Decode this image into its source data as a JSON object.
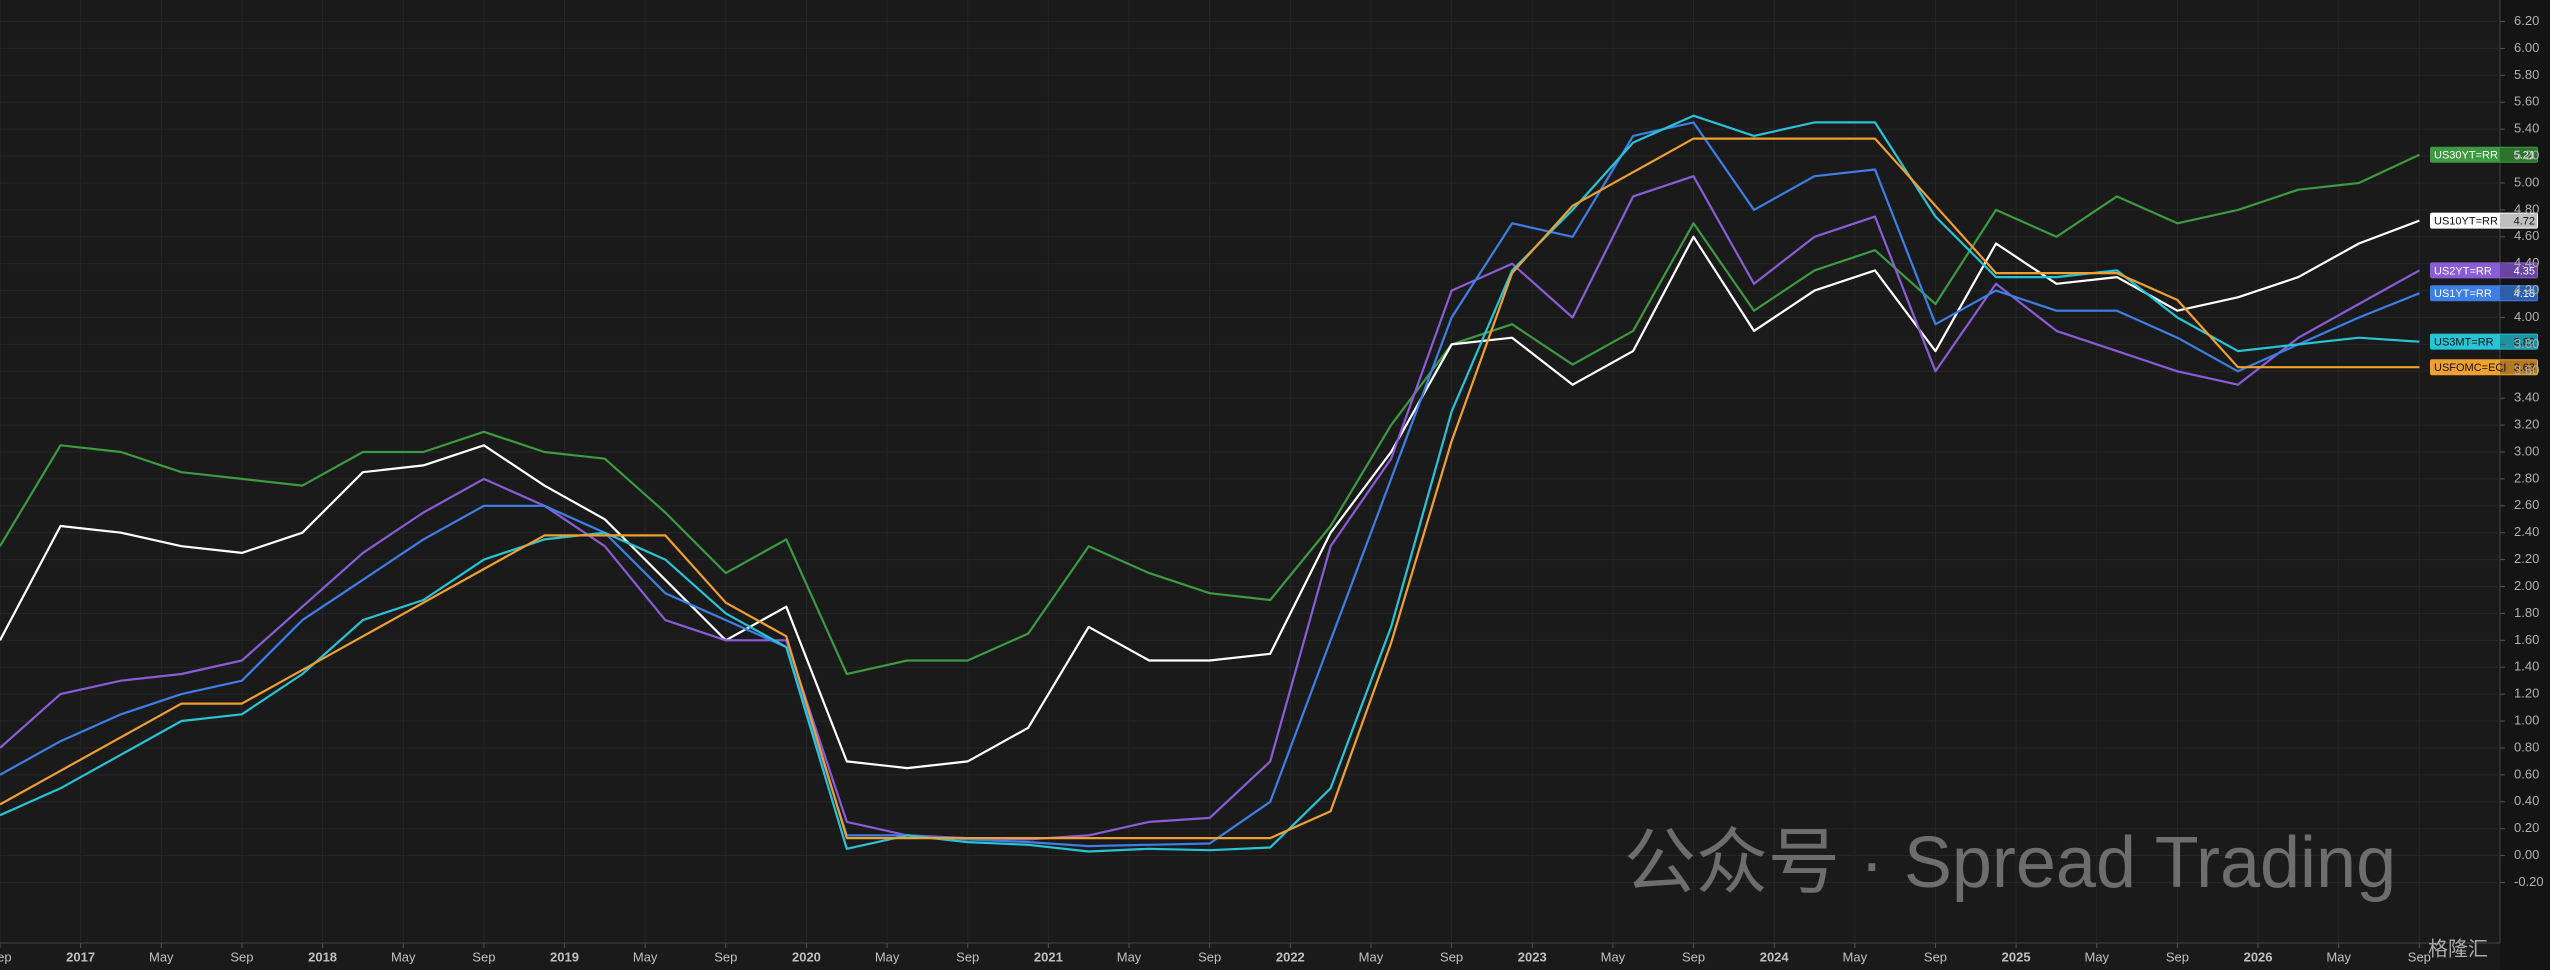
{
  "chart_data": {
    "type": "line",
    "x": [
      "2016-09",
      "2016-12",
      "2017-03",
      "2017-06",
      "2017-09",
      "2017-12",
      "2018-03",
      "2018-06",
      "2018-09",
      "2018-12",
      "2019-03",
      "2019-06",
      "2019-09",
      "2019-12",
      "2020-03",
      "2020-06",
      "2020-09",
      "2020-12",
      "2021-03",
      "2021-06",
      "2021-09",
      "2021-12",
      "2022-03",
      "2022-06",
      "2022-09",
      "2022-12",
      "2023-03",
      "2023-06",
      "2023-09",
      "2023-12",
      "2024-03",
      "2024-06",
      "2024-09",
      "2024-12",
      "2025-03",
      "2025-06",
      "2025-09",
      "2025-12",
      "2026-03",
      "2026-06",
      "2026-09"
    ],
    "series": [
      {
        "name": "US30YT=RR",
        "color": "#3c9a40",
        "values": [
          2.3,
          3.05,
          3.0,
          2.85,
          2.8,
          2.75,
          3.0,
          3.0,
          3.15,
          3.0,
          2.95,
          2.55,
          2.1,
          2.35,
          1.35,
          1.45,
          1.45,
          1.65,
          2.3,
          2.1,
          1.95,
          1.9,
          2.45,
          3.2,
          3.8,
          3.95,
          3.65,
          3.9,
          4.7,
          4.05,
          4.35,
          4.5,
          4.1,
          4.8,
          4.6,
          4.9,
          4.7,
          4.8,
          4.95,
          5.0,
          5.21
        ]
      },
      {
        "name": "US10YT=RR",
        "color": "#ffffff",
        "values": [
          1.6,
          2.45,
          2.4,
          2.3,
          2.25,
          2.4,
          2.85,
          2.9,
          3.05,
          2.75,
          2.5,
          2.05,
          1.6,
          1.85,
          0.7,
          0.65,
          0.7,
          0.95,
          1.7,
          1.45,
          1.45,
          1.5,
          2.4,
          3.0,
          3.8,
          3.85,
          3.5,
          3.75,
          4.6,
          3.9,
          4.2,
          4.35,
          3.75,
          4.55,
          4.25,
          4.3,
          4.05,
          4.15,
          4.3,
          4.55,
          4.72
        ]
      },
      {
        "name": "US2YT=RR",
        "color": "#8a5cd6",
        "values": [
          0.8,
          1.2,
          1.3,
          1.35,
          1.45,
          1.85,
          2.25,
          2.55,
          2.8,
          2.6,
          2.3,
          1.75,
          1.6,
          1.6,
          0.25,
          0.15,
          0.13,
          0.12,
          0.15,
          0.25,
          0.28,
          0.7,
          2.3,
          2.95,
          4.2,
          4.4,
          4.0,
          4.9,
          5.05,
          4.25,
          4.6,
          4.75,
          3.6,
          4.25,
          3.9,
          3.75,
          3.6,
          3.5,
          3.85,
          4.1,
          4.35
        ]
      },
      {
        "name": "US1YT=RR",
        "color": "#3d7fe6",
        "values": [
          0.6,
          0.85,
          1.05,
          1.2,
          1.3,
          1.75,
          2.05,
          2.35,
          2.6,
          2.6,
          2.4,
          1.95,
          1.75,
          1.55,
          0.15,
          0.15,
          0.12,
          0.1,
          0.07,
          0.08,
          0.09,
          0.4,
          1.6,
          2.8,
          4.0,
          4.7,
          4.6,
          5.35,
          5.45,
          4.8,
          5.05,
          5.1,
          3.95,
          4.2,
          4.05,
          4.05,
          3.85,
          3.6,
          3.8,
          4.0,
          4.18
        ]
      },
      {
        "name": "US3MT=RR",
        "color": "#28c4d6",
        "values": [
          0.3,
          0.5,
          0.75,
          1.0,
          1.05,
          1.35,
          1.75,
          1.9,
          2.2,
          2.35,
          2.4,
          2.2,
          1.8,
          1.55,
          0.05,
          0.15,
          0.1,
          0.08,
          0.03,
          0.05,
          0.04,
          0.06,
          0.5,
          1.7,
          3.3,
          4.35,
          4.8,
          5.3,
          5.5,
          5.35,
          5.45,
          5.45,
          4.75,
          4.3,
          4.3,
          4.35,
          4.0,
          3.75,
          3.8,
          3.85,
          3.82
        ]
      },
      {
        "name": "USFOMC=ECI",
        "color": "#f0a030",
        "values": [
          0.38,
          0.63,
          0.88,
          1.13,
          1.13,
          1.38,
          1.63,
          1.88,
          2.13,
          2.38,
          2.38,
          2.38,
          1.88,
          1.63,
          0.13,
          0.13,
          0.13,
          0.13,
          0.13,
          0.13,
          0.13,
          0.13,
          0.33,
          1.58,
          3.08,
          4.33,
          4.83,
          5.08,
          5.33,
          5.33,
          5.33,
          5.33,
          4.83,
          4.33,
          4.33,
          4.33,
          4.13,
          3.63,
          3.63,
          3.63,
          3.63
        ]
      }
    ],
    "xlim": [
      "2016-09",
      "2027-01"
    ],
    "xticks": [
      {
        "value": "2016-09",
        "label": "Sep"
      },
      {
        "value": "2017-01",
        "label": "2017"
      },
      {
        "value": "2017-05",
        "label": "May"
      },
      {
        "value": "2017-09",
        "label": "Sep"
      },
      {
        "value": "2018-01",
        "label": "2018"
      },
      {
        "value": "2018-05",
        "label": "May"
      },
      {
        "value": "2018-09",
        "label": "Sep"
      },
      {
        "value": "2019-01",
        "label": "2019"
      },
      {
        "value": "2019-05",
        "label": "May"
      },
      {
        "value": "2019-09",
        "label": "Sep"
      },
      {
        "value": "2020-01",
        "label": "2020"
      },
      {
        "value": "2020-05",
        "label": "May"
      },
      {
        "value": "2020-09",
        "label": "Sep"
      },
      {
        "value": "2021-01",
        "label": "2021"
      },
      {
        "value": "2021-05",
        "label": "May"
      },
      {
        "value": "2021-09",
        "label": "Sep"
      },
      {
        "value": "2022-01",
        "label": "2022"
      },
      {
        "value": "2022-05",
        "label": "May"
      },
      {
        "value": "2022-09",
        "label": "Sep"
      },
      {
        "value": "2023-01",
        "label": "2023"
      },
      {
        "value": "2023-05",
        "label": "May"
      },
      {
        "value": "2023-09",
        "label": "Sep"
      },
      {
        "value": "2024-01",
        "label": "2024"
      },
      {
        "value": "2024-05",
        "label": "May"
      },
      {
        "value": "2024-09",
        "label": "Sep"
      },
      {
        "value": "2025-01",
        "label": "2025"
      },
      {
        "value": "2025-05",
        "label": "May"
      },
      {
        "value": "2025-09",
        "label": "Sep"
      },
      {
        "value": "2026-01",
        "label": "2026"
      },
      {
        "value": "2026-05",
        "label": "May"
      },
      {
        "value": "2026-09",
        "label": "Sep"
      }
    ],
    "ylim": [
      -0.65,
      6.36
    ],
    "yticks": [
      {
        "value": -0.2,
        "label": "-0.20"
      },
      {
        "value": 0,
        "label": "0.00"
      },
      {
        "value": 0.2,
        "label": "0.20"
      },
      {
        "value": 0.4,
        "label": "0.40"
      },
      {
        "value": 0.6,
        "label": "0.60"
      },
      {
        "value": 0.8,
        "label": "0.80"
      },
      {
        "value": 1,
        "label": "1.00"
      },
      {
        "value": 1.2,
        "label": "1.20"
      },
      {
        "value": 1.4,
        "label": "1.40"
      },
      {
        "value": 1.6,
        "label": "1.60"
      },
      {
        "value": 1.8,
        "label": "1.80"
      },
      {
        "value": 2,
        "label": "2.00"
      },
      {
        "value": 2.2,
        "label": "2.20"
      },
      {
        "value": 2.4,
        "label": "2.40"
      },
      {
        "value": 2.6,
        "label": "2.60"
      },
      {
        "value": 2.8,
        "label": "2.80"
      },
      {
        "value": 3,
        "label": "3.00"
      },
      {
        "value": 3.2,
        "label": "3.20"
      },
      {
        "value": 3.4,
        "label": "3.40"
      },
      {
        "value": 3.6,
        "label": "3.60"
      },
      {
        "value": 3.8,
        "label": "3.80"
      },
      {
        "value": 4,
        "label": "4.00"
      },
      {
        "value": 4.2,
        "label": "4.20"
      },
      {
        "value": 4.4,
        "label": "4.40"
      },
      {
        "value": 4.6,
        "label": "4.60"
      },
      {
        "value": 4.8,
        "label": "4.80"
      },
      {
        "value": 5,
        "label": "5.00"
      },
      {
        "value": 5.2,
        "label": "5.20"
      },
      {
        "value": 5.4,
        "label": "5.40"
      },
      {
        "value": 5.6,
        "label": "5.60"
      },
      {
        "value": 5.8,
        "label": "5.80"
      },
      {
        "value": 6,
        "label": "6.00"
      },
      {
        "value": 6.2,
        "label": "6.20"
      }
    ],
    "grid": true,
    "watermark": "公众号 · Spread Trading",
    "logo": "格隆汇"
  }
}
